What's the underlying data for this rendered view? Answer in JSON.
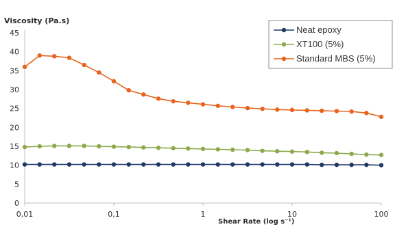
{
  "chart_data": {
    "type": "line",
    "title": "",
    "ylabel": "Viscosity (Pa.s)",
    "xlabel": "Shear Rate (log s⁻¹)",
    "xscale": "log",
    "xlim": [
      0.01,
      100
    ],
    "ylim": [
      0,
      45
    ],
    "yticks": [
      0,
      5,
      10,
      15,
      20,
      25,
      30,
      35,
      40,
      45
    ],
    "xticks": [
      {
        "value": 0.01,
        "label": "0,01"
      },
      {
        "value": 0.1,
        "label": "0,1"
      },
      {
        "value": 1,
        "label": "1"
      },
      {
        "value": 10,
        "label": "10"
      },
      {
        "value": 100,
        "label": "100"
      }
    ],
    "grid": false,
    "legend": "top-right",
    "x": [
      0.01,
      0.0147,
      0.0215,
      0.0316,
      0.0464,
      0.0681,
      0.1,
      0.147,
      0.215,
      0.316,
      0.464,
      0.681,
      1.0,
      1.47,
      2.15,
      3.16,
      4.64,
      6.81,
      10.0,
      14.7,
      21.5,
      31.6,
      46.4,
      68.1,
      100
    ],
    "series": [
      {
        "name": "Neat epoxy",
        "color": "#1f3864",
        "values": [
          10.2,
          10.2,
          10.2,
          10.2,
          10.2,
          10.2,
          10.2,
          10.2,
          10.2,
          10.2,
          10.2,
          10.2,
          10.2,
          10.2,
          10.2,
          10.2,
          10.2,
          10.2,
          10.2,
          10.2,
          10.1,
          10.1,
          10.1,
          10.1,
          10.0
        ]
      },
      {
        "name": "XT100 (5%)",
        "color": "#8fa84a",
        "values": [
          14.8,
          15.0,
          15.1,
          15.1,
          15.1,
          15.0,
          14.9,
          14.8,
          14.7,
          14.6,
          14.5,
          14.4,
          14.3,
          14.2,
          14.1,
          14.0,
          13.8,
          13.7,
          13.6,
          13.5,
          13.3,
          13.2,
          13.0,
          12.8,
          12.7
        ]
      },
      {
        "name": "Standard MBS (5%)",
        "color": "#e8641e",
        "values": [
          36.0,
          39.0,
          38.8,
          38.4,
          36.5,
          34.5,
          32.2,
          29.8,
          28.7,
          27.6,
          26.9,
          26.5,
          26.1,
          25.7,
          25.4,
          25.1,
          24.9,
          24.7,
          24.6,
          24.5,
          24.4,
          24.3,
          24.2,
          23.8,
          22.8
        ]
      }
    ]
  }
}
